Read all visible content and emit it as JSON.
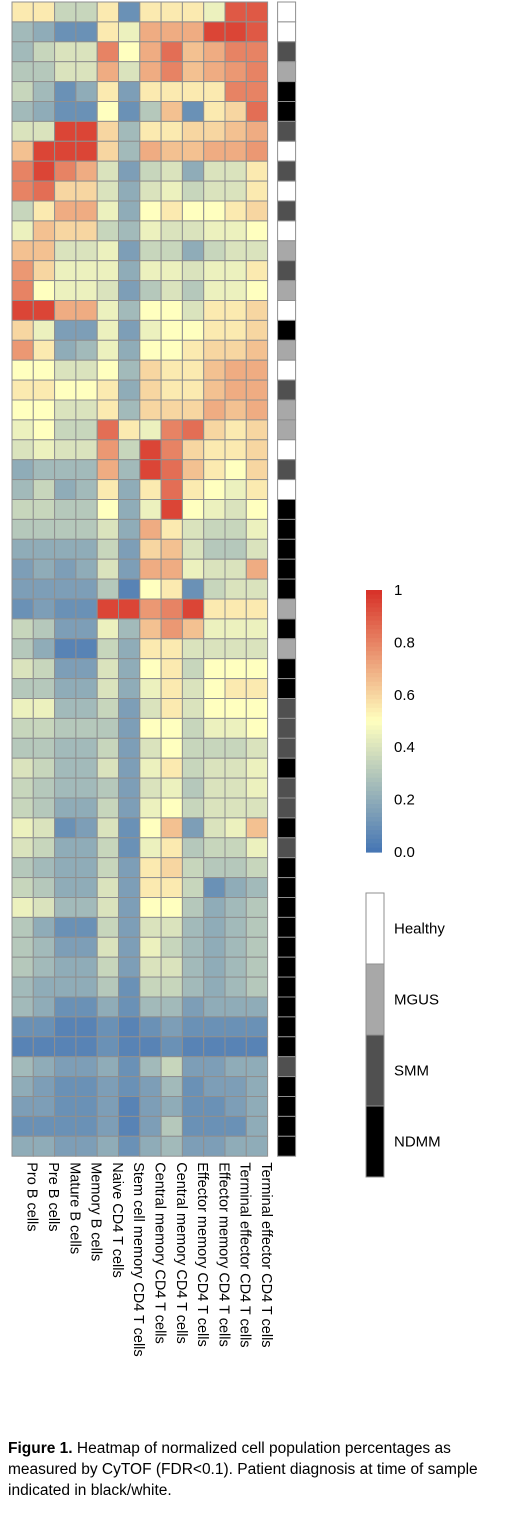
{
  "chart_data": {
    "type": "heatmap",
    "columns": [
      "Pro B cells",
      "Pre B cells",
      "Mature B cells",
      "Memory B cells",
      "Naive CD4 T cells",
      "Stem cell memory CD4 T cells",
      "Central memory CD4 T cells",
      "Central memory CD4 T cells",
      "Effector memory CD4 T cells",
      "Effector memory CD4 T cells",
      "Terminal effector CD4 T cells",
      "Terminal effector CD4 T cells"
    ],
    "values": [
      [
        0.55,
        0.55,
        0.35,
        0.35,
        0.55,
        0.1,
        0.55,
        0.55,
        0.55,
        0.45,
        0.9,
        0.9
      ],
      [
        0.25,
        0.2,
        0.1,
        0.1,
        0.55,
        0.45,
        0.7,
        0.7,
        0.7,
        0.95,
        0.95,
        0.9
      ],
      [
        0.25,
        0.35,
        0.4,
        0.4,
        0.8,
        0.5,
        0.7,
        0.85,
        0.65,
        0.7,
        0.8,
        0.8
      ],
      [
        0.3,
        0.3,
        0.4,
        0.4,
        0.7,
        0.4,
        0.7,
        0.8,
        0.65,
        0.7,
        0.75,
        0.8
      ],
      [
        0.35,
        0.25,
        0.1,
        0.2,
        0.55,
        0.15,
        0.55,
        0.55,
        0.55,
        0.55,
        0.8,
        0.8
      ],
      [
        0.25,
        0.2,
        0.1,
        0.1,
        0.5,
        0.1,
        0.3,
        0.65,
        0.1,
        0.55,
        0.6,
        0.85
      ],
      [
        0.4,
        0.4,
        0.95,
        0.95,
        0.6,
        0.25,
        0.55,
        0.55,
        0.6,
        0.6,
        0.65,
        0.7
      ],
      [
        0.65,
        0.95,
        0.95,
        0.95,
        0.6,
        0.25,
        0.7,
        0.65,
        0.65,
        0.7,
        0.7,
        0.75
      ],
      [
        0.8,
        0.95,
        0.8,
        0.7,
        0.4,
        0.15,
        0.35,
        0.4,
        0.2,
        0.4,
        0.4,
        0.55
      ],
      [
        0.8,
        0.85,
        0.6,
        0.6,
        0.4,
        0.2,
        0.4,
        0.45,
        0.35,
        0.4,
        0.4,
        0.55
      ],
      [
        0.35,
        0.55,
        0.7,
        0.7,
        0.45,
        0.2,
        0.5,
        0.55,
        0.5,
        0.5,
        0.55,
        0.6
      ],
      [
        0.45,
        0.65,
        0.6,
        0.6,
        0.35,
        0.25,
        0.45,
        0.4,
        0.4,
        0.45,
        0.45,
        0.5
      ],
      [
        0.65,
        0.65,
        0.4,
        0.4,
        0.45,
        0.15,
        0.35,
        0.35,
        0.2,
        0.35,
        0.4,
        0.4
      ],
      [
        0.75,
        0.6,
        0.45,
        0.45,
        0.45,
        0.2,
        0.45,
        0.45,
        0.4,
        0.45,
        0.45,
        0.55
      ],
      [
        0.8,
        0.5,
        0.45,
        0.45,
        0.4,
        0.15,
        0.3,
        0.4,
        0.3,
        0.45,
        0.45,
        0.5
      ],
      [
        0.95,
        0.95,
        0.7,
        0.7,
        0.45,
        0.25,
        0.5,
        0.5,
        0.4,
        0.55,
        0.55,
        0.6
      ],
      [
        0.6,
        0.45,
        0.15,
        0.15,
        0.45,
        0.15,
        0.45,
        0.5,
        0.5,
        0.55,
        0.55,
        0.6
      ],
      [
        0.75,
        0.55,
        0.2,
        0.25,
        0.45,
        0.2,
        0.5,
        0.5,
        0.55,
        0.6,
        0.6,
        0.65
      ],
      [
        0.5,
        0.5,
        0.4,
        0.4,
        0.5,
        0.25,
        0.6,
        0.55,
        0.55,
        0.65,
        0.7,
        0.7
      ],
      [
        0.55,
        0.55,
        0.5,
        0.5,
        0.55,
        0.2,
        0.6,
        0.55,
        0.55,
        0.65,
        0.7,
        0.7
      ],
      [
        0.5,
        0.5,
        0.4,
        0.4,
        0.55,
        0.25,
        0.6,
        0.6,
        0.6,
        0.7,
        0.65,
        0.7
      ],
      [
        0.45,
        0.5,
        0.35,
        0.35,
        0.85,
        0.55,
        0.45,
        0.8,
        0.85,
        0.6,
        0.55,
        0.6
      ],
      [
        0.4,
        0.45,
        0.4,
        0.4,
        0.75,
        0.35,
        0.95,
        0.8,
        0.6,
        0.55,
        0.55,
        0.6
      ],
      [
        0.2,
        0.25,
        0.25,
        0.25,
        0.7,
        0.25,
        0.95,
        0.85,
        0.65,
        0.55,
        0.5,
        0.6
      ],
      [
        0.25,
        0.35,
        0.2,
        0.25,
        0.55,
        0.2,
        0.55,
        0.85,
        0.55,
        0.5,
        0.45,
        0.55
      ],
      [
        0.35,
        0.35,
        0.3,
        0.3,
        0.5,
        0.2,
        0.45,
        0.95,
        0.5,
        0.45,
        0.4,
        0.5
      ],
      [
        0.3,
        0.3,
        0.3,
        0.3,
        0.4,
        0.2,
        0.7,
        0.55,
        0.4,
        0.35,
        0.35,
        0.45
      ],
      [
        0.2,
        0.2,
        0.2,
        0.2,
        0.35,
        0.15,
        0.6,
        0.65,
        0.4,
        0.3,
        0.3,
        0.4
      ],
      [
        0.15,
        0.2,
        0.15,
        0.2,
        0.4,
        0.15,
        0.7,
        0.7,
        0.45,
        0.4,
        0.4,
        0.7
      ],
      [
        0.15,
        0.15,
        0.15,
        0.15,
        0.3,
        0.05,
        0.5,
        0.55,
        0.1,
        0.35,
        0.4,
        0.4
      ],
      [
        0.1,
        0.15,
        0.1,
        0.1,
        0.95,
        0.95,
        0.75,
        0.8,
        0.95,
        0.55,
        0.55,
        0.55
      ],
      [
        0.35,
        0.3,
        0.15,
        0.15,
        0.45,
        0.25,
        0.65,
        0.75,
        0.65,
        0.45,
        0.45,
        0.45
      ],
      [
        0.3,
        0.2,
        0.05,
        0.05,
        0.35,
        0.2,
        0.55,
        0.55,
        0.4,
        0.4,
        0.4,
        0.4
      ],
      [
        0.4,
        0.35,
        0.15,
        0.15,
        0.4,
        0.2,
        0.5,
        0.55,
        0.35,
        0.5,
        0.5,
        0.5
      ],
      [
        0.3,
        0.3,
        0.2,
        0.2,
        0.4,
        0.2,
        0.45,
        0.55,
        0.4,
        0.5,
        0.55,
        0.55
      ],
      [
        0.45,
        0.45,
        0.25,
        0.25,
        0.35,
        0.15,
        0.4,
        0.55,
        0.4,
        0.5,
        0.5,
        0.5
      ],
      [
        0.35,
        0.35,
        0.3,
        0.3,
        0.3,
        0.15,
        0.5,
        0.5,
        0.35,
        0.45,
        0.45,
        0.5
      ],
      [
        0.3,
        0.3,
        0.25,
        0.25,
        0.35,
        0.15,
        0.4,
        0.5,
        0.35,
        0.35,
        0.35,
        0.4
      ],
      [
        0.4,
        0.35,
        0.25,
        0.25,
        0.4,
        0.15,
        0.45,
        0.55,
        0.35,
        0.4,
        0.4,
        0.45
      ],
      [
        0.35,
        0.3,
        0.25,
        0.25,
        0.3,
        0.15,
        0.4,
        0.45,
        0.3,
        0.4,
        0.4,
        0.45
      ],
      [
        0.35,
        0.3,
        0.2,
        0.2,
        0.35,
        0.15,
        0.45,
        0.5,
        0.35,
        0.4,
        0.4,
        0.4
      ],
      [
        0.45,
        0.4,
        0.1,
        0.15,
        0.4,
        0.1,
        0.5,
        0.65,
        0.15,
        0.4,
        0.45,
        0.65
      ],
      [
        0.4,
        0.35,
        0.2,
        0.2,
        0.35,
        0.1,
        0.45,
        0.55,
        0.3,
        0.35,
        0.35,
        0.45
      ],
      [
        0.3,
        0.25,
        0.2,
        0.2,
        0.35,
        0.15,
        0.55,
        0.6,
        0.35,
        0.3,
        0.3,
        0.35
      ],
      [
        0.35,
        0.3,
        0.2,
        0.2,
        0.4,
        0.15,
        0.55,
        0.55,
        0.35,
        0.1,
        0.2,
        0.25
      ],
      [
        0.45,
        0.4,
        0.25,
        0.25,
        0.4,
        0.15,
        0.5,
        0.5,
        0.3,
        0.2,
        0.25,
        0.3
      ],
      [
        0.3,
        0.2,
        0.1,
        0.1,
        0.35,
        0.15,
        0.4,
        0.4,
        0.25,
        0.2,
        0.25,
        0.3
      ],
      [
        0.3,
        0.25,
        0.15,
        0.15,
        0.4,
        0.15,
        0.45,
        0.35,
        0.25,
        0.2,
        0.25,
        0.3
      ],
      [
        0.3,
        0.25,
        0.2,
        0.2,
        0.35,
        0.15,
        0.4,
        0.4,
        0.25,
        0.2,
        0.25,
        0.3
      ],
      [
        0.25,
        0.2,
        0.2,
        0.2,
        0.3,
        0.1,
        0.35,
        0.35,
        0.25,
        0.2,
        0.25,
        0.3
      ],
      [
        0.25,
        0.2,
        0.1,
        0.1,
        0.2,
        0.1,
        0.25,
        0.25,
        0.15,
        0.2,
        0.2,
        0.2
      ],
      [
        0.1,
        0.1,
        0.05,
        0.05,
        0.1,
        0.05,
        0.1,
        0.15,
        0.1,
        0.1,
        0.1,
        0.1
      ],
      [
        0.05,
        0.05,
        0.05,
        0.05,
        0.1,
        0.05,
        0.05,
        0.1,
        0.05,
        0.05,
        0.05,
        0.05
      ],
      [
        0.25,
        0.2,
        0.15,
        0.15,
        0.2,
        0.1,
        0.25,
        0.35,
        0.15,
        0.15,
        0.2,
        0.2
      ],
      [
        0.2,
        0.15,
        0.1,
        0.1,
        0.15,
        0.1,
        0.15,
        0.25,
        0.1,
        0.15,
        0.15,
        0.2
      ],
      [
        0.15,
        0.15,
        0.1,
        0.1,
        0.15,
        0.05,
        0.15,
        0.2,
        0.1,
        0.1,
        0.15,
        0.2
      ],
      [
        0.1,
        0.1,
        0.1,
        0.1,
        0.15,
        0.05,
        0.15,
        0.3,
        0.1,
        0.1,
        0.1,
        0.2
      ],
      [
        0.2,
        0.2,
        0.15,
        0.15,
        0.2,
        0.1,
        0.2,
        0.25,
        0.15,
        0.15,
        0.2,
        0.2
      ]
    ],
    "diagnosis": [
      "Healthy",
      "Healthy",
      "SMM",
      "MGUS",
      "NDMM",
      "NDMM",
      "SMM",
      "Healthy",
      "SMM",
      "Healthy",
      "SMM",
      "Healthy",
      "MGUS",
      "SMM",
      "MGUS",
      "Healthy",
      "NDMM",
      "MGUS",
      "Healthy",
      "SMM",
      "MGUS",
      "MGUS",
      "Healthy",
      "SMM",
      "Healthy",
      "NDMM",
      "NDMM",
      "NDMM",
      "NDMM",
      "NDMM",
      "MGUS",
      "NDMM",
      "MGUS",
      "NDMM",
      "NDMM",
      "SMM",
      "SMM",
      "SMM",
      "NDMM",
      "SMM",
      "SMM",
      "NDMM",
      "SMM",
      "NDMM",
      "NDMM",
      "NDMM",
      "NDMM",
      "NDMM",
      "NDMM",
      "NDMM",
      "NDMM",
      "NDMM",
      "NDMM",
      "SMM",
      "NDMM",
      "NDMM",
      "NDMM",
      "NDMM"
    ],
    "scale": {
      "min": 0.0,
      "max": 1,
      "ticks": [
        "1",
        "0.8",
        "0.6",
        "0.4",
        "0.2",
        "0.0"
      ],
      "low_color": "#4575b4",
      "mid_color": "#ffffbf",
      "high_color": "#d73027"
    },
    "group_legend": [
      {
        "label": "Healthy",
        "color": "#ffffff"
      },
      {
        "label": "MGUS",
        "color": "#a8a8a8"
      },
      {
        "label": "SMM",
        "color": "#505050"
      },
      {
        "label": "NDMM",
        "color": "#000000"
      }
    ]
  },
  "caption": {
    "label": "Figure 1.",
    "text": " Heatmap of normalized cell population percentages as measured by CyTOF (FDR<0.1). Patient diagnosis at time of sample indicated in black/white."
  }
}
